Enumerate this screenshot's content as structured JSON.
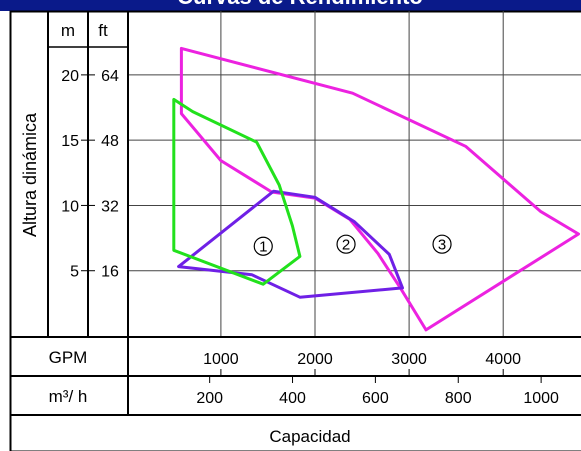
{
  "chart_data": {
    "type": "area",
    "title": "Curvas de Rendimiento",
    "ylabel": "Altura dinámica",
    "xlabel": "Capacidad",
    "y_unit_headers": [
      "m",
      "ft"
    ],
    "y_ticks_m": [
      "20",
      "15",
      "10",
      "5"
    ],
    "y_ticks_m_values": [
      20,
      15,
      10,
      5
    ],
    "y_ticks_ft": [
      "64",
      "48",
      "32",
      "16"
    ],
    "y_ticks_ft_values": [
      64,
      48,
      32,
      16
    ],
    "x_row_gpm_label": "GPM",
    "x_ticks_gpm": [
      "1000",
      "2000",
      "3000",
      "4000"
    ],
    "x_ticks_gpm_values": [
      1000,
      2000,
      3000,
      4000
    ],
    "x_row_m3h_label": "m³/ h",
    "x_ticks_m3h": [
      "200",
      "400",
      "600",
      "800",
      "1000"
    ],
    "x_ticks_m3h_values": [
      200,
      400,
      600,
      800,
      1000
    ],
    "xlim_gpm": [
      0,
      5000
    ],
    "ylim_ft": [
      0,
      75
    ],
    "grid": true,
    "series": [
      {
        "name": "1",
        "color": "#22e11c",
        "points_gpm_ft": [
          [
            500,
            58
          ],
          [
            500,
            21
          ],
          [
            1450,
            12.7
          ],
          [
            1840,
            19.5
          ],
          [
            1760,
            27
          ],
          [
            1620,
            37
          ],
          [
            1380,
            47.5
          ],
          [
            700,
            55
          ]
        ]
      },
      {
        "name": "2",
        "color": "#6f20e6",
        "points_gpm_ft": [
          [
            550,
            17
          ],
          [
            1330,
            15
          ],
          [
            1840,
            9.5
          ],
          [
            2930,
            11.8
          ],
          [
            2790,
            20
          ],
          [
            2420,
            28
          ],
          [
            2000,
            34
          ],
          [
            1560,
            35.5
          ]
        ]
      },
      {
        "name": "3",
        "color": "#ec22e0",
        "points_gpm_ft": [
          [
            580,
            70.5
          ],
          [
            2400,
            59.5
          ],
          [
            3600,
            46.5
          ],
          [
            4400,
            30.5
          ],
          [
            4800,
            25
          ],
          [
            3180,
            1.5
          ],
          [
            2910,
            11.7
          ],
          [
            2670,
            20.2
          ],
          [
            2370,
            28.6
          ],
          [
            2000,
            33.8
          ],
          [
            1540,
            35.3
          ],
          [
            1000,
            43
          ],
          [
            580,
            54.5
          ]
        ]
      }
    ]
  }
}
